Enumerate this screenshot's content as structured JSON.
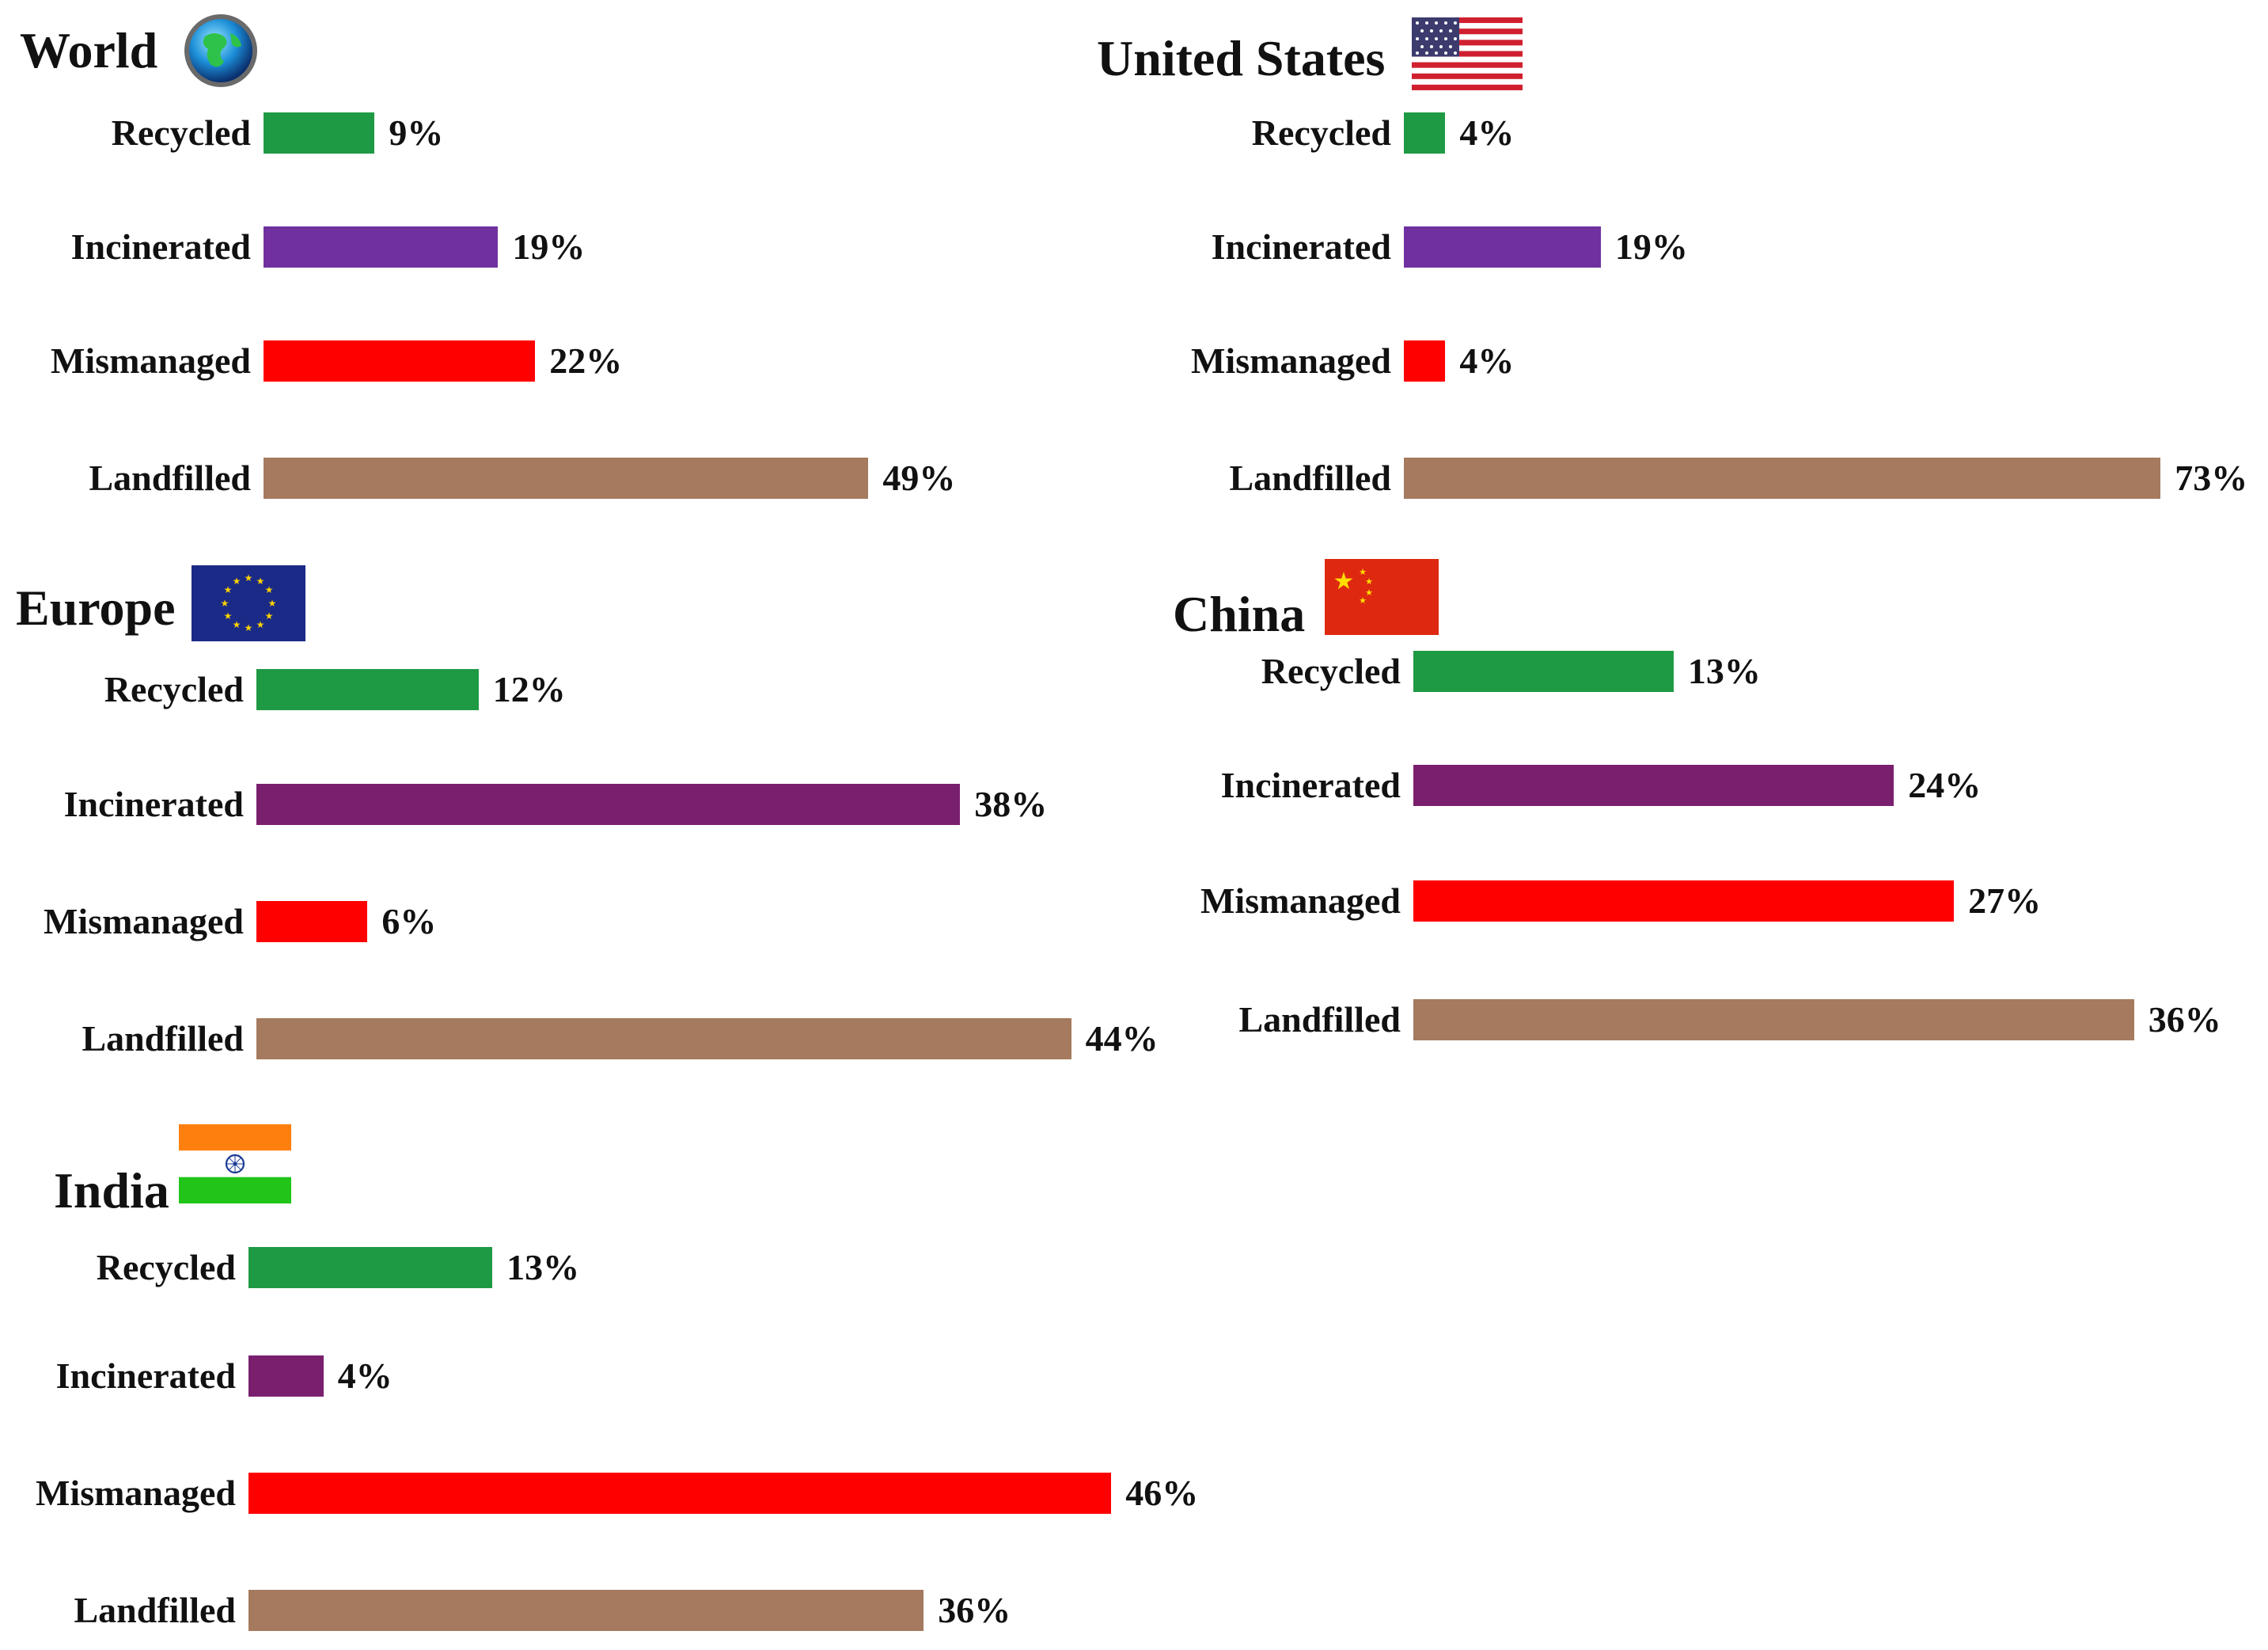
{
  "category_colors": {
    "Recycled": "#1f9a44",
    "Incinerated": "#7030a0",
    "Mismanaged": "#ff0000",
    "Landfilled": "#a57a5e"
  },
  "incinerated_dark": "#7a1f6e",
  "chart_data": [
    {
      "type": "bar",
      "title": "World",
      "icon": "globe-icon",
      "categories": [
        "Recycled",
        "Incinerated",
        "Mismanaged",
        "Landfilled"
      ],
      "values": [
        9,
        19,
        22,
        49
      ],
      "labels": [
        "9%",
        "19%",
        "22%",
        "49%"
      ],
      "orientation": "horizontal"
    },
    {
      "type": "bar",
      "title": "United States",
      "icon": "us-flag-icon",
      "categories": [
        "Recycled",
        "Incinerated",
        "Mismanaged",
        "Landfilled"
      ],
      "values": [
        4,
        19,
        4,
        73
      ],
      "labels": [
        "4%",
        "19%",
        "4%",
        "73%"
      ],
      "orientation": "horizontal"
    },
    {
      "type": "bar",
      "title": "Europe",
      "icon": "eu-flag-icon",
      "categories": [
        "Recycled",
        "Incinerated",
        "Mismanaged",
        "Landfilled"
      ],
      "values": [
        12,
        38,
        6,
        44
      ],
      "labels": [
        "12%",
        "38%",
        "6%",
        "44%"
      ],
      "orientation": "horizontal"
    },
    {
      "type": "bar",
      "title": "China",
      "icon": "china-flag-icon",
      "categories": [
        "Recycled",
        "Incinerated",
        "Mismanaged",
        "Landfilled"
      ],
      "values": [
        13,
        24,
        27,
        36
      ],
      "labels": [
        "13%",
        "24%",
        "27%",
        "36%"
      ],
      "orientation": "horizontal"
    },
    {
      "type": "bar",
      "title": "India",
      "icon": "india-flag-icon",
      "categories": [
        "Recycled",
        "Incinerated",
        "Mismanaged",
        "Landfilled"
      ],
      "values": [
        13,
        4,
        46,
        36
      ],
      "labels": [
        "13%",
        "4%",
        "46%",
        "36%"
      ],
      "orientation": "horizontal"
    }
  ]
}
